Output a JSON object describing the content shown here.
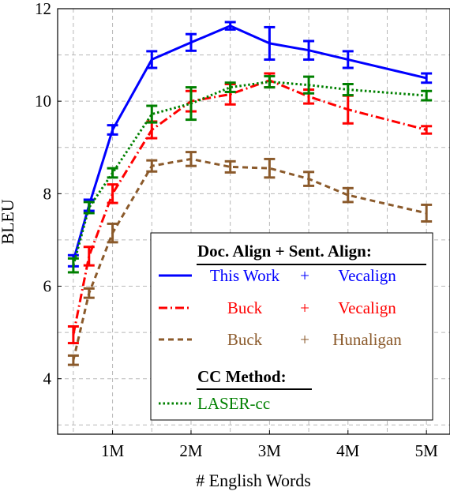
{
  "chart_data": {
    "type": "line",
    "xlabel": "# English Words",
    "ylabel": "BLEU",
    "xlim": [
      0.3,
      5.3
    ],
    "ylim": [
      2.8,
      12
    ],
    "x_ticks": [
      1,
      2,
      3,
      4,
      5
    ],
    "x_tick_labels": [
      "1M",
      "2M",
      "3M",
      "4M",
      "5M"
    ],
    "y_ticks": [
      4,
      6,
      8,
      10,
      12
    ],
    "y_tick_labels": [
      "4",
      "6",
      "8",
      "10",
      "12"
    ],
    "grid": true,
    "legend_placement": "bottom-right",
    "legend": {
      "header1": "Doc. Align + Sent. Align:",
      "header2": "CC Method:",
      "entries": [
        {
          "series": 0,
          "doc": "This Work",
          "plus": "+",
          "sent": "Vecalign"
        },
        {
          "series": 1,
          "doc": "Buck",
          "plus": "+",
          "sent": "Vecalign"
        },
        {
          "series": 2,
          "doc": "Buck",
          "plus": "+",
          "sent": "Hunaligan"
        },
        {
          "series": 3,
          "label": "LASER-cc"
        }
      ]
    },
    "series": [
      {
        "color": "#0000ff",
        "dash": "solid",
        "x": [
          0.5,
          0.7,
          1,
          1.5,
          2,
          2.5,
          3,
          3.5,
          4,
          5
        ],
        "y": [
          6.55,
          7.75,
          9.38,
          10.9,
          11.27,
          11.63,
          11.25,
          11.1,
          10.9,
          10.5
        ],
        "err": [
          0.12,
          0.12,
          0.1,
          0.18,
          0.18,
          0.08,
          0.35,
          0.2,
          0.18,
          0.1
        ]
      },
      {
        "color": "#ff0000",
        "dash": "dashdot",
        "x": [
          0.5,
          0.7,
          1,
          1.5,
          2,
          2.5,
          3,
          3.5,
          4,
          5
        ],
        "y": [
          4.95,
          6.65,
          8.0,
          9.38,
          10.0,
          10.15,
          10.45,
          10.1,
          9.82,
          9.38
        ],
        "err": [
          0.18,
          0.2,
          0.2,
          0.18,
          0.22,
          0.22,
          0.15,
          0.15,
          0.3,
          0.08
        ]
      },
      {
        "color": "#8b5a2b",
        "dash": "dashed",
        "x": [
          0.5,
          0.7,
          1,
          1.5,
          2,
          2.5,
          3,
          3.5,
          4,
          5
        ],
        "y": [
          4.4,
          5.85,
          7.15,
          8.6,
          8.75,
          8.58,
          8.55,
          8.32,
          7.97,
          7.58
        ],
        "err": [
          0.1,
          0.1,
          0.2,
          0.12,
          0.15,
          0.12,
          0.2,
          0.15,
          0.15,
          0.18
        ]
      },
      {
        "color": "#008000",
        "dash": "dotted",
        "x": [
          0.5,
          0.7,
          1,
          1.5,
          2,
          2.5,
          3,
          3.5,
          4,
          5
        ],
        "y": [
          6.45,
          7.7,
          8.45,
          9.72,
          9.95,
          10.3,
          10.42,
          10.35,
          10.25,
          10.12
        ],
        "err": [
          0.15,
          0.12,
          0.1,
          0.18,
          0.35,
          0.1,
          0.12,
          0.18,
          0.12,
          0.1
        ]
      }
    ]
  }
}
